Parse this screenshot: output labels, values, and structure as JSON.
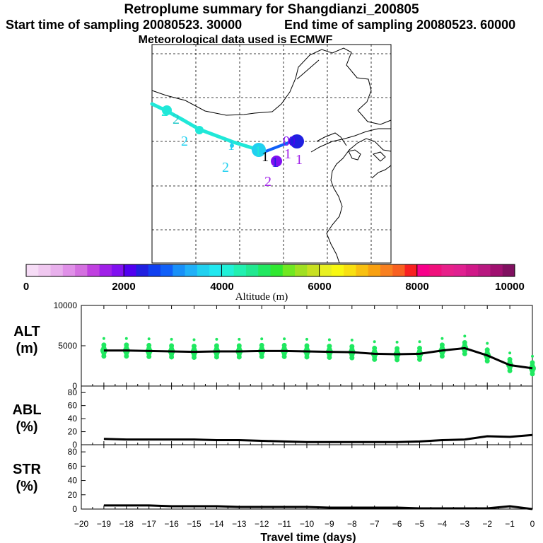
{
  "titles": {
    "main": "Retroplume summary for Shangdianzi_200805",
    "start": "Start time of sampling 20080523. 30000",
    "end": "End time of sampling 20080523. 60000",
    "met": "Meteorological data used is ECMWF"
  },
  "colorbar": {
    "label": "Altitude (m)",
    "ticks": [
      "0",
      "2000",
      "4000",
      "6000",
      "8000",
      "10000"
    ],
    "colors": [
      "#f6dcf6",
      "#f0c8f0",
      "#e8b0ec",
      "#e090e8",
      "#d470e0",
      "#c040e0",
      "#a020e8",
      "#8010f0",
      "#5000f0",
      "#2020e0",
      "#1040f0",
      "#1060f8",
      "#1890f8",
      "#20b0f8",
      "#20d0f0",
      "#20e8f0",
      "#20f0d8",
      "#20f0b0",
      "#20e890",
      "#20e860",
      "#30e830",
      "#70e820",
      "#a0e020",
      "#c8e020",
      "#e8f020",
      "#f8f810",
      "#f8e010",
      "#f8c010",
      "#f8a010",
      "#f88020",
      "#f86020",
      "#f82020",
      "#f8008a",
      "#f0107c",
      "#e8208a",
      "#e02090",
      "#d01888",
      "#b81880",
      "#a01070",
      "#801060"
    ]
  },
  "map": {
    "labels_2": [
      "2",
      "2",
      "2",
      "2",
      "2"
    ],
    "labels_1": [
      "1",
      "1",
      "1",
      "1",
      "1",
      "1"
    ],
    "labels_0": [
      "0",
      "0",
      "0"
    ]
  },
  "chart_data": [
    {
      "type": "line",
      "name": "ALT",
      "ylabel": "ALT",
      "yunit": "(m)",
      "ylim": [
        0,
        10000
      ],
      "yticks": [
        "0",
        "5000",
        "10000"
      ],
      "x": [
        -19,
        -18,
        -17,
        -16,
        -15,
        -14,
        -13,
        -12,
        -11,
        -10,
        -9,
        -8,
        -7,
        -6,
        -5,
        -4,
        -3,
        -2,
        -1,
        0
      ],
      "values": [
        4400,
        4400,
        4350,
        4300,
        4250,
        4300,
        4300,
        4350,
        4350,
        4300,
        4250,
        4200,
        4000,
        3950,
        4000,
        4400,
        4700,
        3800,
        2600,
        2200
      ],
      "scatter_color": "#20e860"
    },
    {
      "type": "line",
      "name": "ABL",
      "ylabel": "ABL",
      "yunit": "(%)",
      "ylim": [
        0,
        90
      ],
      "yticks": [
        "0",
        "20",
        "40",
        "60",
        "80"
      ],
      "x": [
        -19,
        -18,
        -17,
        -16,
        -15,
        -14,
        -13,
        -12,
        -11,
        -10,
        -9,
        -8,
        -7,
        -6,
        -5,
        -4,
        -3,
        -2,
        -1,
        0
      ],
      "values": [
        9,
        8,
        8,
        8,
        8,
        7,
        7,
        6,
        5,
        4,
        4,
        4,
        4,
        4,
        5,
        7,
        8,
        13,
        12,
        15
      ]
    },
    {
      "type": "line",
      "name": "STR",
      "ylabel": "STR",
      "yunit": "(%)",
      "ylim": [
        0,
        90
      ],
      "yticks": [
        "0",
        "20",
        "40",
        "60",
        "80"
      ],
      "x": [
        -19,
        -18,
        -17,
        -16,
        -15,
        -14,
        -13,
        -12,
        -11,
        -10,
        -9,
        -8,
        -7,
        -6,
        -5,
        -4,
        -3,
        -2,
        -1,
        0
      ],
      "values": [
        5,
        5,
        5,
        4,
        4,
        4,
        3,
        3,
        3,
        3,
        2,
        2,
        2,
        2,
        1,
        1,
        1,
        1,
        4,
        0
      ]
    }
  ],
  "xaxis": {
    "label": "Travel time (days)",
    "ticks": [
      "−20",
      "−19",
      "−18",
      "−17",
      "−16",
      "−15",
      "−14",
      "−13",
      "−12",
      "−11",
      "−10",
      "−9",
      "−8",
      "−7",
      "−6",
      "−5",
      "−4",
      "−3",
      "−2",
      "−1",
      "0"
    ],
    "range": [
      -20,
      0
    ]
  }
}
